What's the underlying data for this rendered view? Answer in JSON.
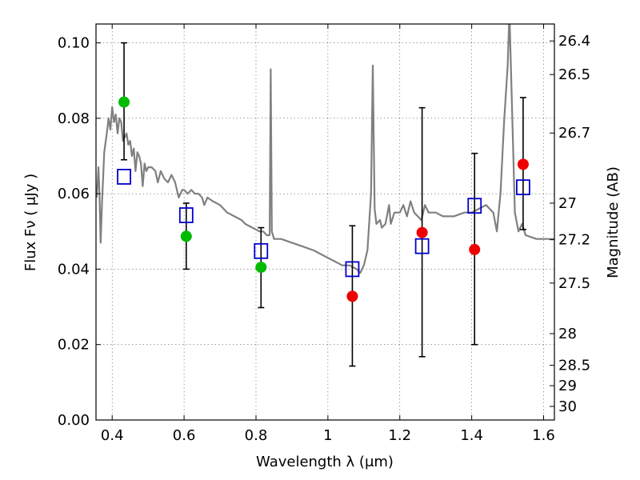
{
  "chart_data": {
    "type": "scatter",
    "xlabel": "Wavelength  λ (μm)",
    "ylabel": "Flux  Fν  ( μJy )",
    "ylabel_right": "Magnitude (AB)",
    "xlim": [
      0.355,
      1.63
    ],
    "ylim": [
      0.0,
      0.105
    ],
    "grid": true,
    "colors": {
      "template": "#808080",
      "model_box": "#0000cc",
      "green": "#00bb00",
      "red": "#ee0000",
      "errorbar": "#000000"
    },
    "x_ticks": [
      {
        "v": 0.4,
        "label": "0.4"
      },
      {
        "v": 0.6,
        "label": "0.6"
      },
      {
        "v": 0.8,
        "label": "0.8"
      },
      {
        "v": 1.0,
        "label": "1"
      },
      {
        "v": 1.2,
        "label": "1.2"
      },
      {
        "v": 1.4,
        "label": "1.4"
      },
      {
        "v": 1.6,
        "label": "1.6"
      }
    ],
    "y_ticks": [
      {
        "v": 0.0,
        "label": "0.00"
      },
      {
        "v": 0.02,
        "label": "0.02"
      },
      {
        "v": 0.04,
        "label": "0.04"
      },
      {
        "v": 0.06,
        "label": "0.06"
      },
      {
        "v": 0.08,
        "label": "0.08"
      },
      {
        "v": 0.1,
        "label": "0.10"
      }
    ],
    "mag_ticks": [
      {
        "v": 0.1005,
        "label": "26.4"
      },
      {
        "v": 0.0916,
        "label": "26.5"
      },
      {
        "v": 0.0761,
        "label": "26.7"
      },
      {
        "v": 0.0575,
        "label": "27"
      },
      {
        "v": 0.0478,
        "label": "27.2"
      },
      {
        "v": 0.0363,
        "label": "27.5"
      },
      {
        "v": 0.0229,
        "label": "28"
      },
      {
        "v": 0.0145,
        "label": "28.5"
      },
      {
        "v": 0.0091,
        "label": "29"
      },
      {
        "v": 0.0036,
        "label": "30"
      }
    ],
    "template_spectrum": [
      [
        0.357,
        0.059
      ],
      [
        0.362,
        0.067
      ],
      [
        0.365,
        0.059
      ],
      [
        0.368,
        0.047
      ],
      [
        0.372,
        0.058
      ],
      [
        0.378,
        0.071
      ],
      [
        0.385,
        0.076
      ],
      [
        0.39,
        0.08
      ],
      [
        0.395,
        0.077
      ],
      [
        0.4,
        0.083
      ],
      [
        0.405,
        0.079
      ],
      [
        0.41,
        0.081
      ],
      [
        0.415,
        0.076
      ],
      [
        0.42,
        0.08
      ],
      [
        0.425,
        0.079
      ],
      [
        0.43,
        0.074
      ],
      [
        0.435,
        0.075
      ],
      [
        0.44,
        0.076
      ],
      [
        0.445,
        0.073
      ],
      [
        0.45,
        0.074
      ],
      [
        0.455,
        0.07
      ],
      [
        0.46,
        0.072
      ],
      [
        0.465,
        0.066
      ],
      [
        0.47,
        0.071
      ],
      [
        0.475,
        0.07
      ],
      [
        0.48,
        0.068
      ],
      [
        0.485,
        0.062
      ],
      [
        0.49,
        0.068
      ],
      [
        0.495,
        0.066
      ],
      [
        0.5,
        0.067
      ],
      [
        0.51,
        0.067
      ],
      [
        0.52,
        0.066
      ],
      [
        0.527,
        0.063
      ],
      [
        0.535,
        0.066
      ],
      [
        0.545,
        0.064
      ],
      [
        0.555,
        0.063
      ],
      [
        0.565,
        0.065
      ],
      [
        0.575,
        0.063
      ],
      [
        0.585,
        0.059
      ],
      [
        0.595,
        0.061
      ],
      [
        0.6,
        0.061
      ],
      [
        0.61,
        0.06
      ],
      [
        0.62,
        0.061
      ],
      [
        0.63,
        0.06
      ],
      [
        0.64,
        0.06
      ],
      [
        0.65,
        0.059
      ],
      [
        0.656,
        0.057
      ],
      [
        0.665,
        0.059
      ],
      [
        0.68,
        0.058
      ],
      [
        0.7,
        0.057
      ],
      [
        0.72,
        0.055
      ],
      [
        0.74,
        0.054
      ],
      [
        0.76,
        0.053
      ],
      [
        0.77,
        0.052
      ],
      [
        0.79,
        0.051
      ],
      [
        0.81,
        0.05
      ],
      [
        0.82,
        0.05
      ],
      [
        0.83,
        0.049
      ],
      [
        0.838,
        0.049
      ],
      [
        0.841,
        0.093
      ],
      [
        0.844,
        0.05
      ],
      [
        0.85,
        0.048
      ],
      [
        0.87,
        0.048
      ],
      [
        0.9,
        0.047
      ],
      [
        0.93,
        0.046
      ],
      [
        0.96,
        0.045
      ],
      [
        0.98,
        0.044
      ],
      [
        1.0,
        0.043
      ],
      [
        1.02,
        0.042
      ],
      [
        1.04,
        0.041
      ],
      [
        1.06,
        0.041
      ],
      [
        1.08,
        0.04
      ],
      [
        1.09,
        0.039
      ],
      [
        1.1,
        0.041
      ],
      [
        1.11,
        0.045
      ],
      [
        1.12,
        0.06
      ],
      [
        1.125,
        0.094
      ],
      [
        1.13,
        0.056
      ],
      [
        1.135,
        0.052
      ],
      [
        1.145,
        0.053
      ],
      [
        1.15,
        0.051
      ],
      [
        1.16,
        0.052
      ],
      [
        1.17,
        0.057
      ],
      [
        1.175,
        0.052
      ],
      [
        1.185,
        0.055
      ],
      [
        1.2,
        0.055
      ],
      [
        1.21,
        0.057
      ],
      [
        1.22,
        0.054
      ],
      [
        1.23,
        0.058
      ],
      [
        1.24,
        0.055
      ],
      [
        1.25,
        0.054
      ],
      [
        1.26,
        0.053
      ],
      [
        1.27,
        0.057
      ],
      [
        1.28,
        0.055
      ],
      [
        1.3,
        0.055
      ],
      [
        1.32,
        0.054
      ],
      [
        1.35,
        0.054
      ],
      [
        1.38,
        0.055
      ],
      [
        1.4,
        0.055
      ],
      [
        1.42,
        0.056
      ],
      [
        1.44,
        0.057
      ],
      [
        1.46,
        0.055
      ],
      [
        1.47,
        0.05
      ],
      [
        1.475,
        0.055
      ],
      [
        1.48,
        0.06
      ],
      [
        1.49,
        0.079
      ],
      [
        1.5,
        0.094
      ],
      [
        1.505,
        0.108
      ],
      [
        1.51,
        0.09
      ],
      [
        1.52,
        0.055
      ],
      [
        1.53,
        0.05
      ],
      [
        1.54,
        0.052
      ],
      [
        1.55,
        0.049
      ],
      [
        1.58,
        0.048
      ],
      [
        1.63,
        0.048
      ]
    ],
    "model_boxes": [
      {
        "x": 0.433,
        "y": 0.0645
      },
      {
        "x": 0.606,
        "y": 0.0543
      },
      {
        "x": 0.814,
        "y": 0.0448
      },
      {
        "x": 1.068,
        "y": 0.04
      },
      {
        "x": 1.262,
        "y": 0.0461
      },
      {
        "x": 1.408,
        "y": 0.0568
      },
      {
        "x": 1.543,
        "y": 0.0617
      }
    ],
    "observed": [
      {
        "x": 0.433,
        "y": 0.0843,
        "color": "green",
        "err_lo": 0.069,
        "err_hi": 0.1
      },
      {
        "x": 0.606,
        "y": 0.0487,
        "color": "green",
        "err_lo": 0.04,
        "err_hi": 0.0575
      },
      {
        "x": 0.814,
        "y": 0.0405,
        "color": "green",
        "err_lo": 0.0298,
        "err_hi": 0.051
      },
      {
        "x": 1.068,
        "y": 0.0328,
        "color": "red",
        "err_lo": 0.0143,
        "err_hi": 0.0515
      },
      {
        "x": 1.262,
        "y": 0.0497,
        "color": "red",
        "err_lo": 0.0168,
        "err_hi": 0.0828
      },
      {
        "x": 1.408,
        "y": 0.0452,
        "color": "red",
        "err_lo": 0.02,
        "err_hi": 0.0707
      },
      {
        "x": 1.543,
        "y": 0.0678,
        "color": "red",
        "err_lo": 0.0505,
        "err_hi": 0.0855
      }
    ]
  }
}
